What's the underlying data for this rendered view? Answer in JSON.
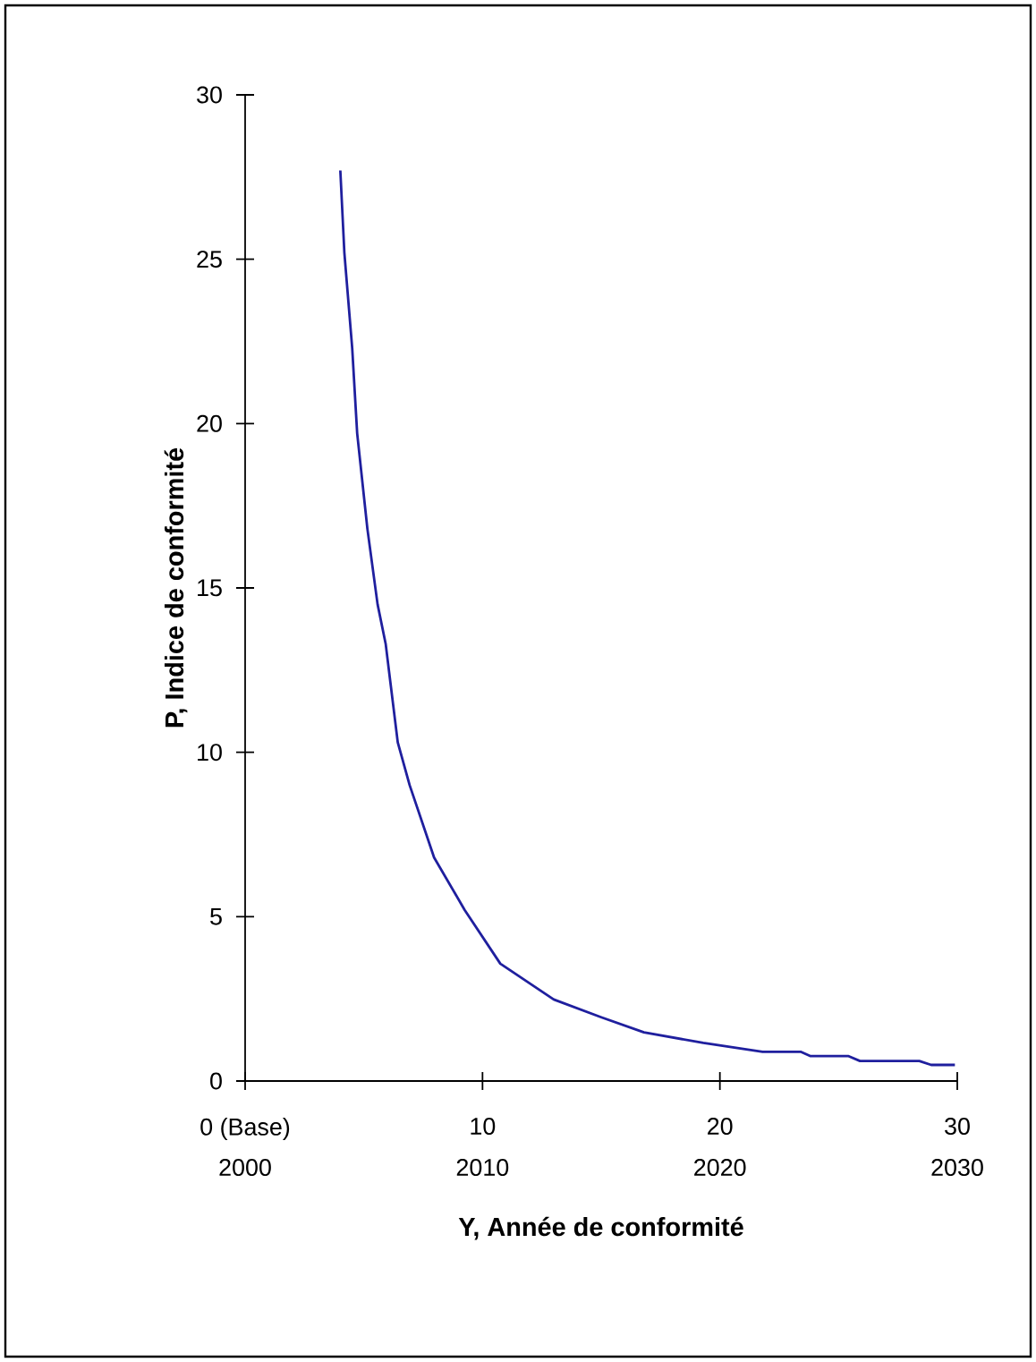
{
  "chart_data": {
    "type": "line",
    "xlabel": "Y, Année de conformité",
    "ylabel": "P, Indice de conformité",
    "x": [
      4.01,
      4.18,
      4.51,
      4.72,
      5.15,
      5.58,
      5.92,
      6.43,
      6.93,
      7.96,
      9.25,
      10.75,
      13.0,
      15.0,
      16.8,
      19.3,
      21.8,
      23.4,
      23.8,
      25.4,
      25.9,
      28.4,
      28.9,
      29.9
    ],
    "series": [
      {
        "color": "#1f1f9e",
        "values": [
          27.7,
          25.2,
          22.3,
          19.7,
          16.8,
          14.5,
          13.3,
          10.3,
          9.0,
          6.8,
          5.2,
          3.57,
          2.48,
          1.94,
          1.48,
          1.16,
          0.89,
          0.89,
          0.76,
          0.76,
          0.61,
          0.61,
          0.49,
          0.49
        ]
      }
    ],
    "xlim": [
      0,
      30
    ],
    "ylim": [
      0,
      30
    ],
    "xticks": [
      {
        "value": 0,
        "label": "0 (Base)"
      },
      10,
      20,
      30
    ],
    "yticks": [
      0,
      5,
      10,
      15,
      20,
      25,
      30
    ],
    "x2lim": [
      2000,
      2030
    ],
    "x2ticks": [
      2000,
      2010,
      2020,
      2030
    ],
    "grid": false,
    "legend": false,
    "marker": "none",
    "line_style": "solid"
  }
}
